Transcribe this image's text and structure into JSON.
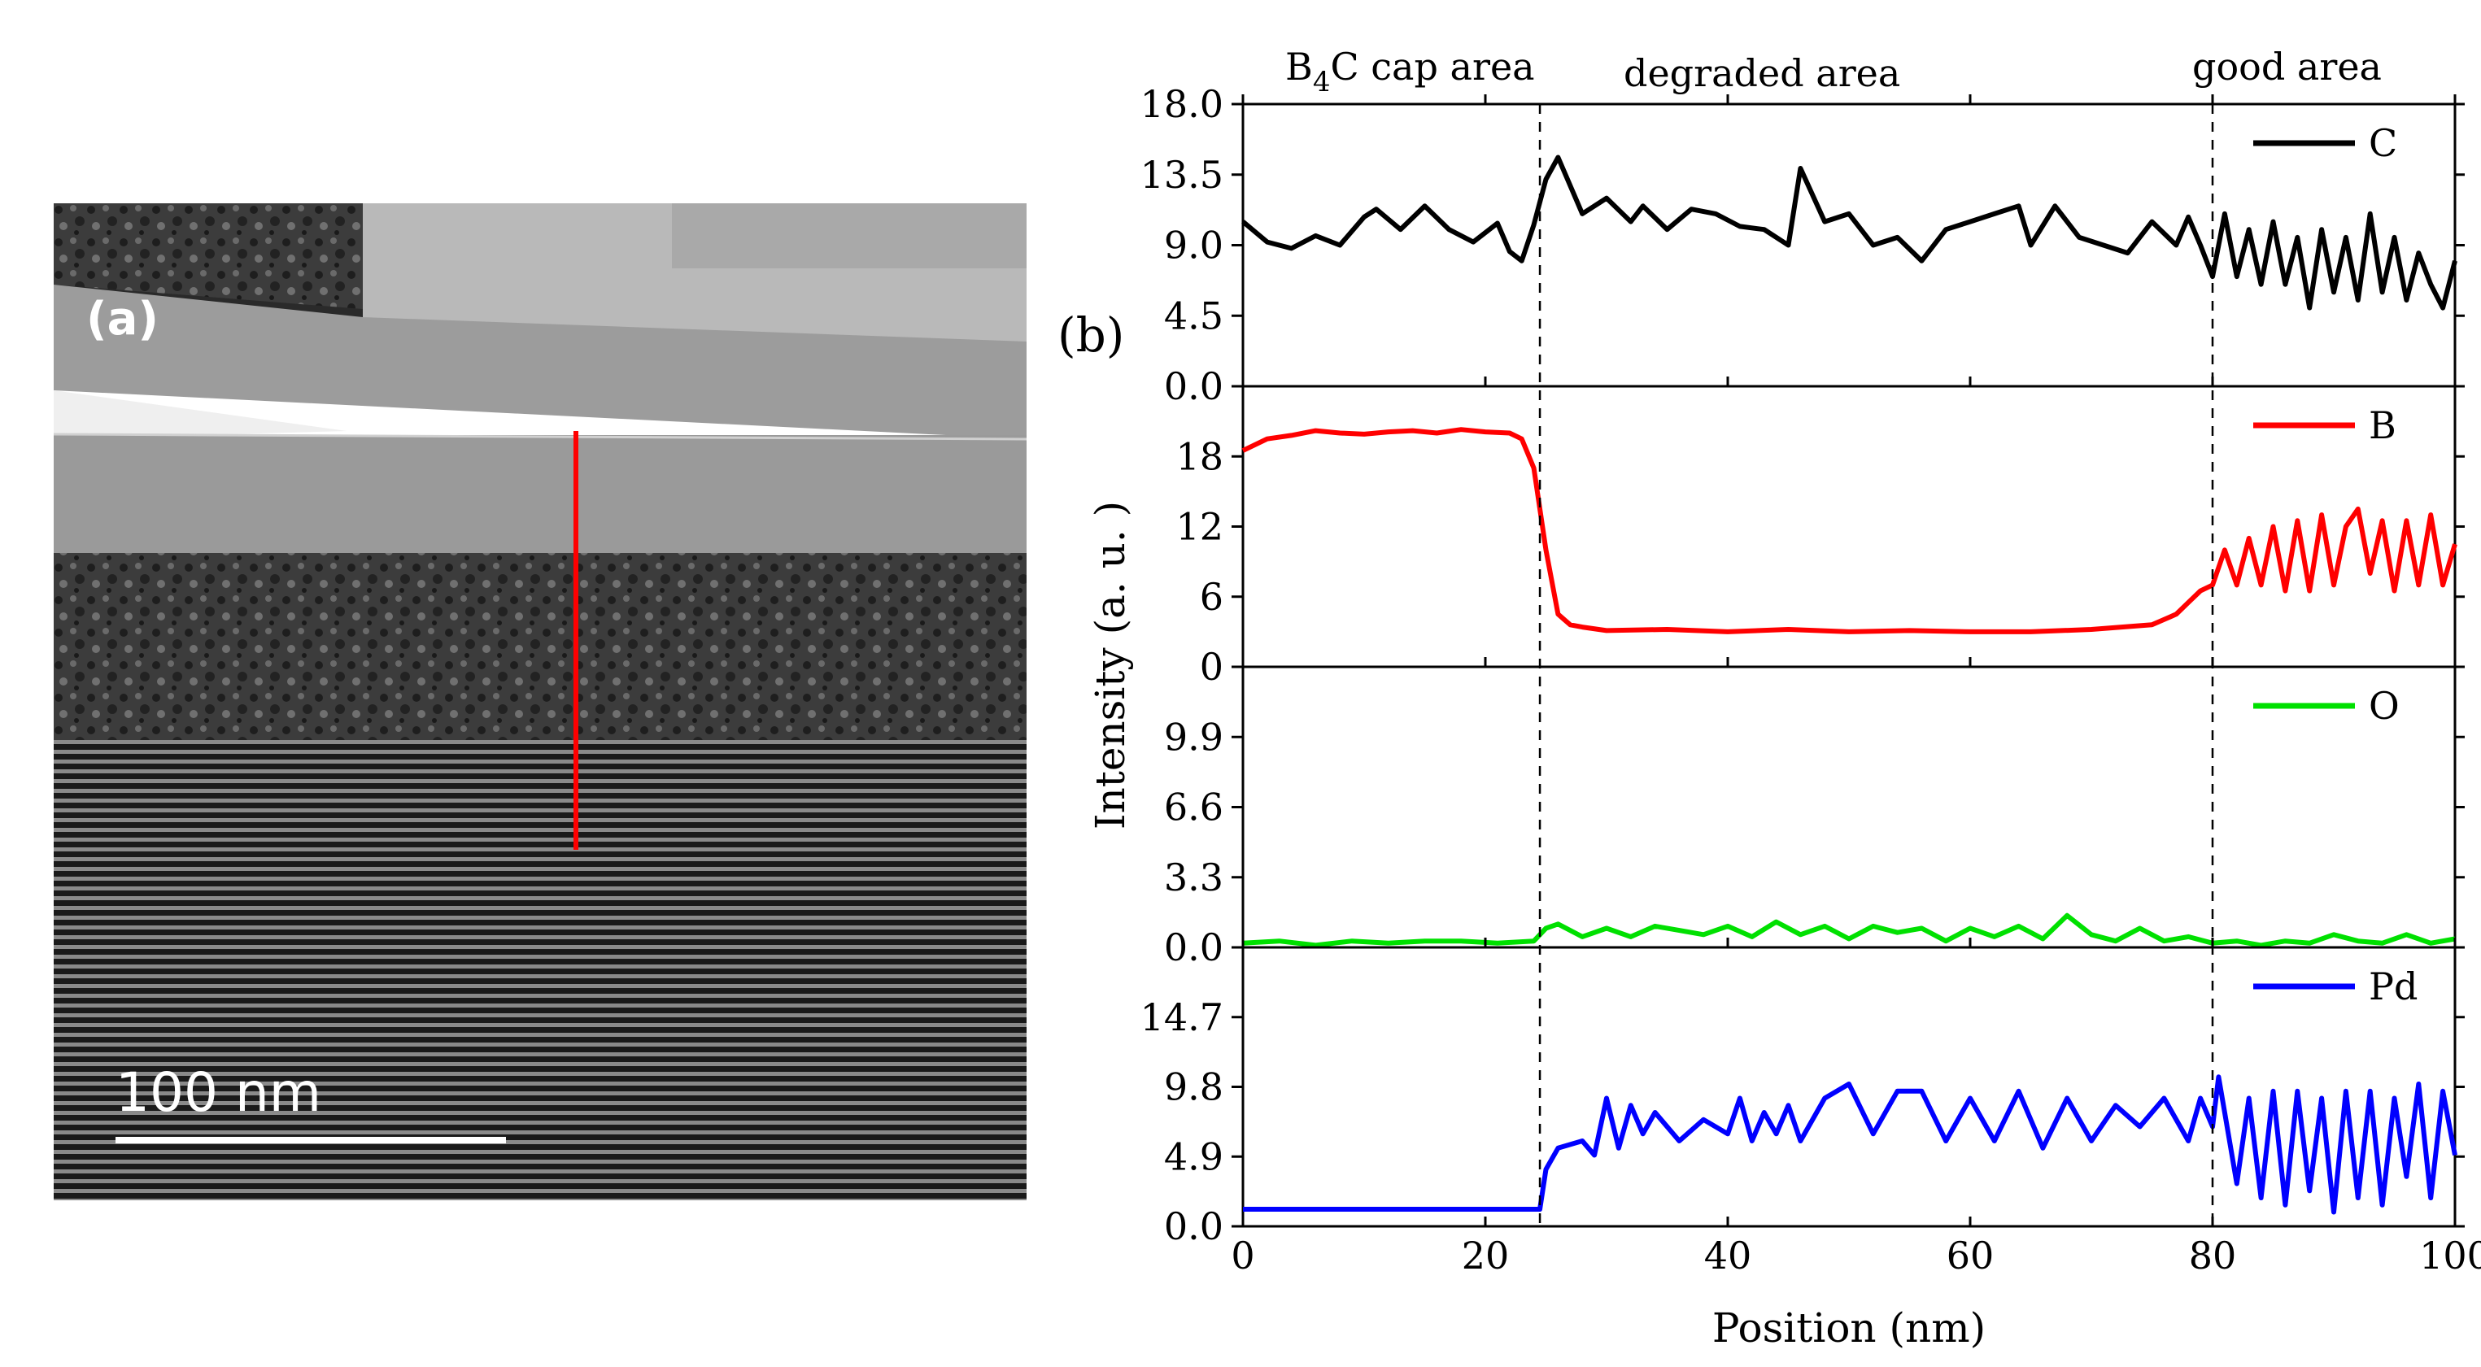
{
  "panel_a": {
    "label": "(a)",
    "scale_bar_text": "100 nm"
  },
  "chart_data": {
    "type": "line",
    "panel_label": "(b)",
    "xlabel": "Position (nm)",
    "ylabel": "Intensity (a. u. )",
    "xlim": [
      0,
      100
    ],
    "xticks": [
      "0",
      "20",
      "40",
      "60",
      "80",
      "100"
    ],
    "regions": [
      {
        "label_main": "B",
        "label_sub": "4",
        "label_rest": "C cap area"
      },
      {
        "label_main": "degraded area"
      },
      {
        "label_main": "good area"
      }
    ],
    "boundaries": [
      24.5,
      80
    ],
    "colors": {
      "C": "#000000",
      "B": "#ff0000",
      "O": "#00e000",
      "Pd": "#0000ff"
    },
    "panels": [
      {
        "name": "C",
        "ylim": [
          0,
          18
        ],
        "yticks": [
          "0.0",
          "4.5",
          "9.0",
          "13.5",
          "18.0"
        ],
        "x": [
          0,
          2,
          4,
          6,
          8,
          10,
          11,
          13,
          15,
          17,
          19,
          21,
          22,
          23,
          24,
          25,
          26,
          28,
          30,
          32,
          33,
          35,
          37,
          39,
          41,
          43,
          45,
          46,
          48,
          50,
          52,
          54,
          56,
          58,
          60,
          62,
          64,
          65,
          67,
          69,
          71,
          73,
          75,
          77,
          78,
          79,
          80,
          81,
          82,
          83,
          84,
          85,
          86,
          87,
          88,
          89,
          90,
          91,
          92,
          93,
          94,
          95,
          96,
          97,
          98,
          99,
          100
        ],
        "values": [
          10.5,
          9.2,
          8.8,
          9.6,
          9.0,
          10.8,
          11.3,
          10.0,
          11.5,
          10.0,
          9.2,
          10.4,
          8.6,
          8.0,
          10.3,
          13.2,
          14.6,
          11.0,
          12.0,
          10.5,
          11.5,
          10.0,
          11.3,
          11.0,
          10.2,
          10.0,
          9.0,
          13.9,
          10.5,
          11.0,
          9.0,
          9.5,
          8.0,
          10.0,
          10.5,
          11.0,
          11.5,
          9.0,
          11.5,
          9.5,
          9.0,
          8.5,
          10.5,
          9.0,
          10.8,
          9.0,
          7.0,
          11.0,
          7.0,
          10.0,
          6.5,
          10.5,
          6.5,
          9.5,
          5.0,
          10.0,
          6.0,
          9.5,
          5.5,
          11.0,
          6.0,
          9.5,
          5.5,
          8.5,
          6.5,
          5.0,
          8.0
        ]
      },
      {
        "name": "B",
        "ylim": [
          0,
          24
        ],
        "yticks": [
          "0",
          "6",
          "12",
          "18"
        ],
        "x": [
          0,
          2,
          4,
          6,
          8,
          10,
          12,
          14,
          16,
          18,
          20,
          22,
          23,
          24,
          25,
          26,
          27,
          28,
          30,
          35,
          40,
          45,
          50,
          55,
          60,
          65,
          70,
          75,
          77,
          78,
          79,
          80,
          81,
          82,
          83,
          84,
          85,
          86,
          87,
          88,
          89,
          90,
          91,
          92,
          93,
          94,
          95,
          96,
          97,
          98,
          99,
          100
        ],
        "values": [
          18.5,
          19.5,
          19.8,
          20.2,
          20.0,
          19.9,
          20.1,
          20.2,
          20.0,
          20.3,
          20.1,
          20.0,
          19.5,
          17.0,
          10.0,
          4.5,
          3.6,
          3.4,
          3.1,
          3.2,
          3.0,
          3.2,
          3.0,
          3.1,
          3.0,
          3.0,
          3.2,
          3.6,
          4.5,
          5.5,
          6.5,
          7.0,
          10.0,
          7.0,
          11.0,
          7.0,
          12.0,
          6.5,
          12.5,
          6.5,
          13.0,
          7.0,
          12.0,
          13.5,
          8.0,
          12.5,
          6.5,
          12.5,
          7.0,
          13.0,
          7.0,
          10.5
        ]
      },
      {
        "name": "O",
        "ylim": [
          0,
          13.2
        ],
        "yticks": [
          "0.0",
          "3.3",
          "6.6",
          "9.9"
        ],
        "x": [
          0,
          3,
          6,
          9,
          12,
          15,
          18,
          21,
          24,
          25,
          26,
          28,
          30,
          32,
          34,
          36,
          38,
          40,
          42,
          44,
          46,
          48,
          50,
          52,
          54,
          56,
          58,
          60,
          62,
          64,
          66,
          68,
          70,
          72,
          74,
          76,
          78,
          80,
          82,
          84,
          86,
          88,
          90,
          92,
          94,
          96,
          98,
          100
        ],
        "values": [
          0.2,
          0.3,
          0.1,
          0.3,
          0.2,
          0.3,
          0.3,
          0.2,
          0.3,
          0.9,
          1.1,
          0.5,
          0.9,
          0.5,
          1.0,
          0.8,
          0.6,
          1.0,
          0.5,
          1.2,
          0.6,
          1.0,
          0.4,
          1.0,
          0.7,
          0.9,
          0.3,
          0.9,
          0.5,
          1.0,
          0.4,
          1.5,
          0.6,
          0.3,
          0.9,
          0.3,
          0.5,
          0.2,
          0.3,
          0.1,
          0.3,
          0.2,
          0.6,
          0.3,
          0.2,
          0.6,
          0.2,
          0.4
        ]
      },
      {
        "name": "Pd",
        "ylim": [
          0,
          19.6
        ],
        "yticks": [
          "0.0",
          "4.9",
          "9.8",
          "14.7"
        ],
        "x": [
          0,
          5,
          10,
          15,
          20,
          24.5,
          25,
          26,
          28,
          29,
          30,
          31,
          32,
          33,
          34,
          36,
          38,
          40,
          41,
          42,
          43,
          44,
          45,
          46,
          48,
          50,
          52,
          54,
          56,
          58,
          60,
          62,
          64,
          66,
          68,
          70,
          72,
          74,
          76,
          78,
          79,
          80,
          80.5,
          81,
          82,
          83,
          84,
          85,
          86,
          87,
          88,
          89,
          90,
          91,
          92,
          93,
          94,
          95,
          96,
          97,
          98,
          99,
          100
        ],
        "values": [
          1.2,
          1.2,
          1.2,
          1.2,
          1.2,
          1.2,
          4.0,
          5.5,
          6.0,
          5.0,
          9.0,
          5.5,
          8.5,
          6.5,
          8.0,
          6.0,
          7.5,
          6.5,
          9.0,
          6.0,
          8.0,
          6.5,
          8.5,
          6.0,
          9.0,
          10.0,
          6.5,
          9.5,
          9.5,
          6.0,
          9.0,
          6.0,
          9.5,
          5.5,
          9.0,
          6.0,
          8.5,
          7.0,
          9.0,
          6.0,
          9.0,
          7.0,
          10.5,
          8.0,
          3.0,
          9.0,
          2.0,
          9.5,
          1.5,
          9.5,
          2.5,
          9.0,
          1.0,
          9.5,
          2.0,
          9.5,
          1.5,
          9.0,
          3.5,
          10.0,
          2.0,
          9.5,
          5.0
        ]
      }
    ]
  }
}
